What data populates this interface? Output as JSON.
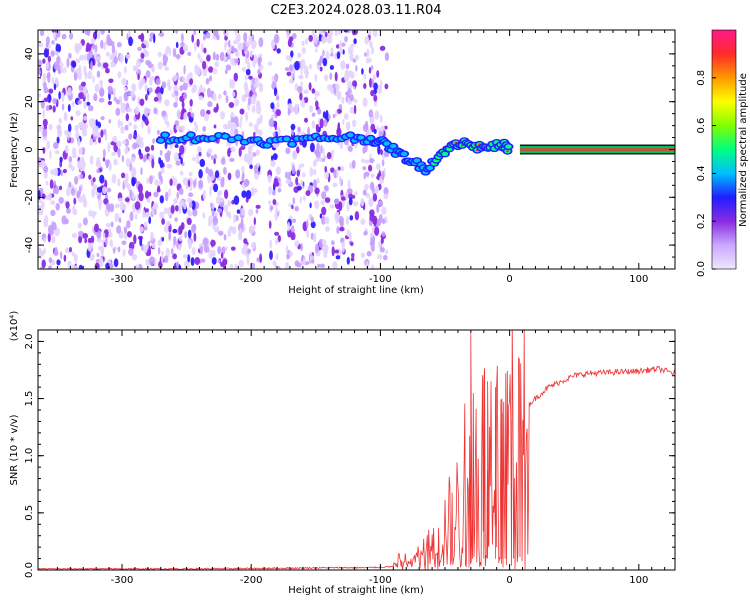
{
  "title": "C2E3.2024.028.03.11.R04",
  "colors": {
    "snr_line": "#ee3333",
    "spectral_line": "#ff3030",
    "spectral_band": "#00c060",
    "colorbar": [
      "#f0e6ff",
      "#c9a8ff",
      "#8a2be2",
      "#1f1fff",
      "#00bfff",
      "#00ff80",
      "#80ff00",
      "#ffff00",
      "#ff9900",
      "#ff2a2a",
      "#ff1a8c"
    ]
  },
  "chart_data": [
    {
      "type": "heatmap",
      "xlabel": "Height of straight line (km)",
      "ylabel": "Frequency (Hz)",
      "xlim": [
        -365,
        128
      ],
      "ylim": [
        -50,
        50
      ],
      "xticks": [
        -300,
        -200,
        -100,
        0,
        100
      ],
      "xtick_labels": [
        "-300",
        "-200",
        "-100",
        "0",
        "100"
      ],
      "yticks": [
        -40,
        -20,
        0,
        20,
        40
      ],
      "ytick_labels": [
        "-40",
        "-20",
        "0",
        "20",
        "40"
      ],
      "noise_region_x": [
        -365,
        -95
      ],
      "gaps_x": [
        [
          -192,
          -186
        ],
        [
          -178,
          -173
        ],
        [
          -118,
          -114
        ]
      ],
      "signal_track": {
        "x": [
          -270,
          -250,
          -230,
          -200,
          -185,
          -160,
          -140,
          -120,
          -105,
          -95,
          -85,
          -75,
          -65,
          -55,
          -45,
          -35,
          -25,
          -15,
          -5,
          0
        ],
        "y": [
          5,
          5,
          5,
          4,
          3,
          4,
          5,
          5,
          4,
          2,
          -2,
          -5,
          -8,
          -3,
          2,
          3,
          1,
          1,
          2,
          0
        ]
      },
      "tone_start_x": 8,
      "tone_y": 0,
      "colorbar": {
        "label": "Normalized spectral amplitude",
        "ticks": [
          0.0,
          0.2,
          0.4,
          0.6,
          0.8
        ],
        "tick_labels": [
          "0.0",
          "0.2",
          "0.4",
          "0.6",
          "0.8"
        ],
        "range": [
          0,
          1
        ]
      }
    },
    {
      "type": "line",
      "xlabel": "Height of straight line (km)",
      "ylabel": "SNR (10 * v/v)",
      "scale_label": "(x10⁴)",
      "xlim": [
        -365,
        128
      ],
      "ylim": [
        0,
        2.1
      ],
      "xticks": [
        -300,
        -200,
        -100,
        0,
        100
      ],
      "xtick_labels": [
        "-300",
        "-200",
        "-100",
        "0",
        "100"
      ],
      "yticks": [
        0.0,
        0.5,
        1.0,
        1.5,
        2.0
      ],
      "ytick_labels": [
        "0.0",
        "0.5",
        "1.0",
        "1.5",
        "2.0"
      ],
      "envelope": {
        "x": [
          -365,
          -250,
          -180,
          -140,
          -110,
          -90,
          -75,
          -60,
          -50,
          -40,
          -32,
          -28,
          -24,
          -20,
          -15,
          -10,
          -5,
          0,
          5,
          10,
          20,
          30,
          40,
          50,
          60,
          80,
          100,
          115,
          128
        ],
        "y": [
          0.01,
          0.01,
          0.015,
          0.02,
          0.02,
          0.03,
          0.06,
          0.2,
          0.35,
          0.5,
          0.8,
          1.0,
          0.9,
          1.05,
          1.1,
          1.15,
          1.2,
          1.25,
          1.3,
          1.4,
          1.5,
          1.6,
          1.65,
          1.7,
          1.72,
          1.73,
          1.74,
          1.76,
          1.72
        ]
      },
      "spikes": [
        {
          "x": -30,
          "y": 2.07
        },
        {
          "x": -20,
          "y": 1.62
        },
        {
          "x": -17,
          "y": 1.65
        },
        {
          "x": -11,
          "y": 1.6
        },
        {
          "x": -6,
          "y": 1.5
        }
      ]
    }
  ]
}
